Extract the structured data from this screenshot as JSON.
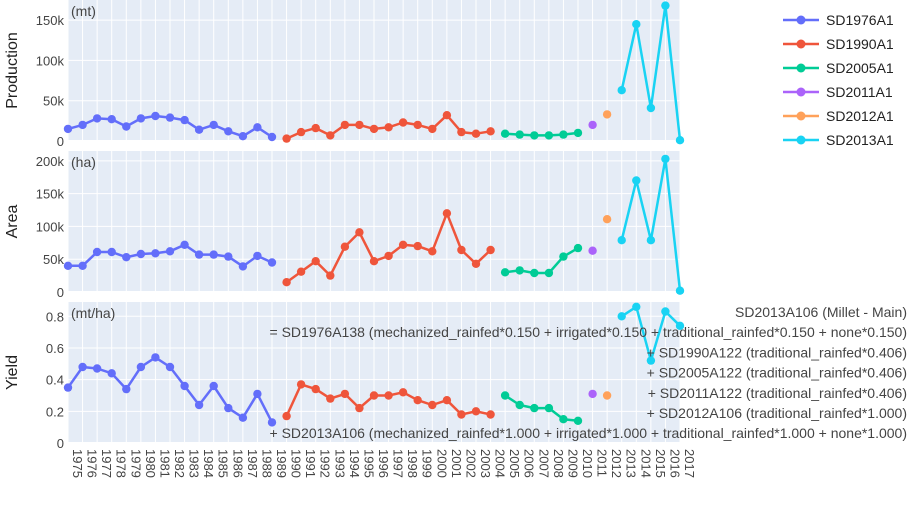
{
  "chart_data": {
    "type": "line",
    "years": [
      "1975",
      "1976",
      "1977",
      "1978",
      "1979",
      "1980",
      "1981",
      "1982",
      "1983",
      "1984",
      "1985",
      "1986",
      "1987",
      "1988",
      "1989",
      "1990",
      "1991",
      "1992",
      "1993",
      "1994",
      "1995",
      "1996",
      "1997",
      "1998",
      "1999",
      "2000",
      "2001",
      "2002",
      "2003",
      "2004",
      "2005",
      "2006",
      "2007",
      "2008",
      "2009",
      "2010",
      "2011",
      "2012",
      "2013",
      "2014",
      "2015",
      "2016",
      "2017"
    ],
    "series": [
      {
        "name": "SD1976A1",
        "color": "#636efa"
      },
      {
        "name": "SD1990A1",
        "color": "#ef553b"
      },
      {
        "name": "SD2005A1",
        "color": "#00cc96"
      },
      {
        "name": "SD2011A1",
        "color": "#ab63fa"
      },
      {
        "name": "SD2012A1",
        "color": "#ffa15a"
      },
      {
        "name": "SD2013A1",
        "color": "#19d3f3"
      }
    ],
    "panels": [
      {
        "id": "production",
        "ylabel": "Production",
        "unit": "(mt)",
        "ylim": [
          0,
          175000
        ],
        "yticks": [
          {
            "v": 0,
            "label": "0"
          },
          {
            "v": 50000,
            "label": "50k"
          },
          {
            "v": 100000,
            "label": "100k"
          },
          {
            "v": 150000,
            "label": "150k"
          }
        ],
        "series_values": [
          [
            [
              1975,
              15000
            ],
            [
              1976,
              20000
            ],
            [
              1977,
              28000
            ],
            [
              1978,
              27000
            ],
            [
              1979,
              18000
            ],
            [
              1980,
              28000
            ],
            [
              1981,
              31000
            ],
            [
              1982,
              29000
            ],
            [
              1983,
              26000
            ],
            [
              1984,
              14000
            ],
            [
              1985,
              20000
            ],
            [
              1986,
              12000
            ],
            [
              1987,
              6000
            ],
            [
              1988,
              17000
            ],
            [
              1989,
              5000
            ]
          ],
          [
            [
              1990,
              3000
            ],
            [
              1991,
              11000
            ],
            [
              1992,
              16000
            ],
            [
              1993,
              7000
            ],
            [
              1994,
              20000
            ],
            [
              1995,
              20000
            ],
            [
              1996,
              15000
            ],
            [
              1997,
              17000
            ],
            [
              1998,
              23000
            ],
            [
              1999,
              20000
            ],
            [
              2000,
              15000
            ],
            [
              2001,
              32000
            ],
            [
              2002,
              11000
            ],
            [
              2003,
              9000
            ],
            [
              2004,
              12000
            ]
          ],
          [
            [
              2005,
              9000
            ],
            [
              2006,
              8000
            ],
            [
              2007,
              7000
            ],
            [
              2008,
              7000
            ],
            [
              2009,
              8000
            ],
            [
              2010,
              10000
            ]
          ],
          [
            [
              2011,
              20000
            ]
          ],
          [
            [
              2012,
              33000
            ]
          ],
          [
            [
              2013,
              63000
            ],
            [
              2014,
              145000
            ],
            [
              2015,
              41000
            ],
            [
              2016,
              168000
            ],
            [
              2017,
              1000
            ]
          ]
        ]
      },
      {
        "id": "area",
        "ylabel": "Area",
        "unit": "(ha)",
        "ylim": [
          0,
          215000
        ],
        "yticks": [
          {
            "v": 0,
            "label": "0"
          },
          {
            "v": 50000,
            "label": "50k"
          },
          {
            "v": 100000,
            "label": "100k"
          },
          {
            "v": 150000,
            "label": "150k"
          },
          {
            "v": 200000,
            "label": "200k"
          }
        ],
        "series_values": [
          [
            [
              1975,
              40000
            ],
            [
              1976,
              40000
            ],
            [
              1977,
              61000
            ],
            [
              1978,
              61000
            ],
            [
              1979,
              53000
            ],
            [
              1980,
              58000
            ],
            [
              1981,
              59000
            ],
            [
              1982,
              62000
            ],
            [
              1983,
              72000
            ],
            [
              1984,
              57000
            ],
            [
              1985,
              57000
            ],
            [
              1986,
              54000
            ],
            [
              1987,
              39000
            ],
            [
              1988,
              55000
            ],
            [
              1989,
              45000
            ]
          ],
          [
            [
              1990,
              15000
            ],
            [
              1991,
              31000
            ],
            [
              1992,
              47000
            ],
            [
              1993,
              25000
            ],
            [
              1994,
              69000
            ],
            [
              1995,
              91000
            ],
            [
              1996,
              47000
            ],
            [
              1997,
              55000
            ],
            [
              1998,
              72000
            ],
            [
              1999,
              70000
            ],
            [
              2000,
              62000
            ],
            [
              2001,
              120000
            ],
            [
              2002,
              64000
            ],
            [
              2003,
              43000
            ],
            [
              2004,
              64000
            ]
          ],
          [
            [
              2005,
              30000
            ],
            [
              2006,
              33000
            ],
            [
              2007,
              29000
            ],
            [
              2008,
              29000
            ],
            [
              2009,
              54000
            ],
            [
              2010,
              67000
            ]
          ],
          [
            [
              2011,
              63000
            ]
          ],
          [
            [
              2012,
              111000
            ]
          ],
          [
            [
              2013,
              79000
            ],
            [
              2014,
              170000
            ],
            [
              2015,
              79000
            ],
            [
              2016,
              203000
            ],
            [
              2017,
              2000
            ]
          ]
        ]
      },
      {
        "id": "yield",
        "ylabel": "Yield",
        "unit": "(mt/ha)",
        "ylim": [
          0,
          0.89
        ],
        "yticks": [
          {
            "v": 0,
            "label": "0"
          },
          {
            "v": 0.2,
            "label": "0.2"
          },
          {
            "v": 0.4,
            "label": "0.4"
          },
          {
            "v": 0.6,
            "label": "0.6"
          },
          {
            "v": 0.8,
            "label": "0.8"
          }
        ],
        "series_values": [
          [
            [
              1975,
              0.35
            ],
            [
              1976,
              0.48
            ],
            [
              1977,
              0.47
            ],
            [
              1978,
              0.44
            ],
            [
              1979,
              0.34
            ],
            [
              1980,
              0.48
            ],
            [
              1981,
              0.54
            ],
            [
              1982,
              0.48
            ],
            [
              1983,
              0.36
            ],
            [
              1984,
              0.24
            ],
            [
              1985,
              0.36
            ],
            [
              1986,
              0.22
            ],
            [
              1987,
              0.16
            ],
            [
              1988,
              0.31
            ],
            [
              1989,
              0.13
            ]
          ],
          [
            [
              1990,
              0.17
            ],
            [
              1991,
              0.37
            ],
            [
              1992,
              0.34
            ],
            [
              1993,
              0.28
            ],
            [
              1994,
              0.31
            ],
            [
              1995,
              0.22
            ],
            [
              1996,
              0.3
            ],
            [
              1997,
              0.3
            ],
            [
              1998,
              0.32
            ],
            [
              1999,
              0.27
            ],
            [
              2000,
              0.24
            ],
            [
              2001,
              0.27
            ],
            [
              2002,
              0.18
            ],
            [
              2003,
              0.2
            ],
            [
              2004,
              0.18
            ]
          ],
          [
            [
              2005,
              0.3
            ],
            [
              2006,
              0.24
            ],
            [
              2007,
              0.22
            ],
            [
              2008,
              0.22
            ],
            [
              2009,
              0.15
            ],
            [
              2010,
              0.14
            ]
          ],
          [
            [
              2011,
              0.31
            ]
          ],
          [
            [
              2012,
              0.3
            ]
          ],
          [
            [
              2013,
              0.8
            ],
            [
              2014,
              0.86
            ],
            [
              2015,
              0.52
            ],
            [
              2016,
              0.83
            ],
            [
              2017,
              0.74
            ]
          ]
        ]
      }
    ],
    "legend_position": "top-right",
    "grid": true,
    "annotation_lines": [
      "SD2013A106 (Millet - Main)",
      "= SD1976A138 (mechanized_rainfed*0.150 + irrigated*0.150 + traditional_rainfed*0.150 + none*0.150)",
      "+ SD1990A122 (traditional_rainfed*0.406)",
      "+ SD2005A122 (traditional_rainfed*0.406)",
      "+ SD2011A122 (traditional_rainfed*0.406)",
      "+ SD2012A106 (traditional_rainfed*1.000)",
      "+ SD2013A106 (mechanized_rainfed*1.000 + irrigated*1.000 + traditional_rainfed*1.000 + none*1.000)"
    ]
  }
}
